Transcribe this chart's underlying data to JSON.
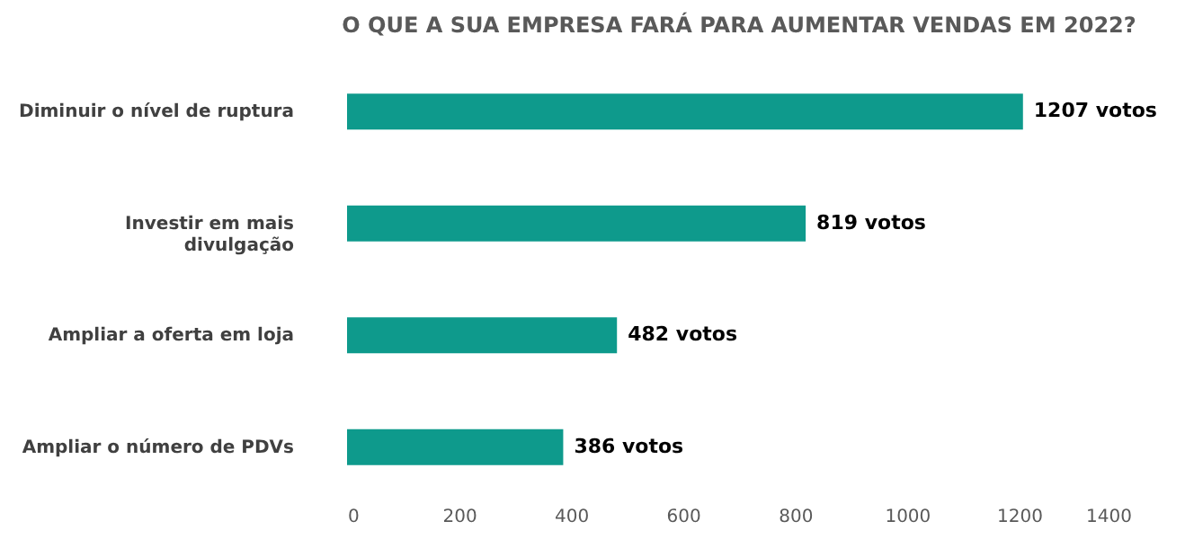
{
  "chart_data": {
    "type": "bar",
    "orientation": "horizontal",
    "title": "O QUE A SUA EMPRESA FARÁ PARA AUMENTAR VENDAS EM 2022?",
    "categories": [
      "Diminuir o nível de ruptura",
      "Investir em mais\ndivulgação",
      "Ampliar a oferta em loja",
      "Ampliar o número de PDVs"
    ],
    "values": [
      1207,
      819,
      482,
      386
    ],
    "value_labels": [
      "1207 votos",
      "819 votos",
      "482 votos",
      "386 votos"
    ],
    "color": "#0e9a8c",
    "xlim": [
      0,
      1400
    ],
    "xticks": [
      0,
      200,
      400,
      600,
      800,
      1000,
      1200,
      1400
    ],
    "grid": false
  }
}
